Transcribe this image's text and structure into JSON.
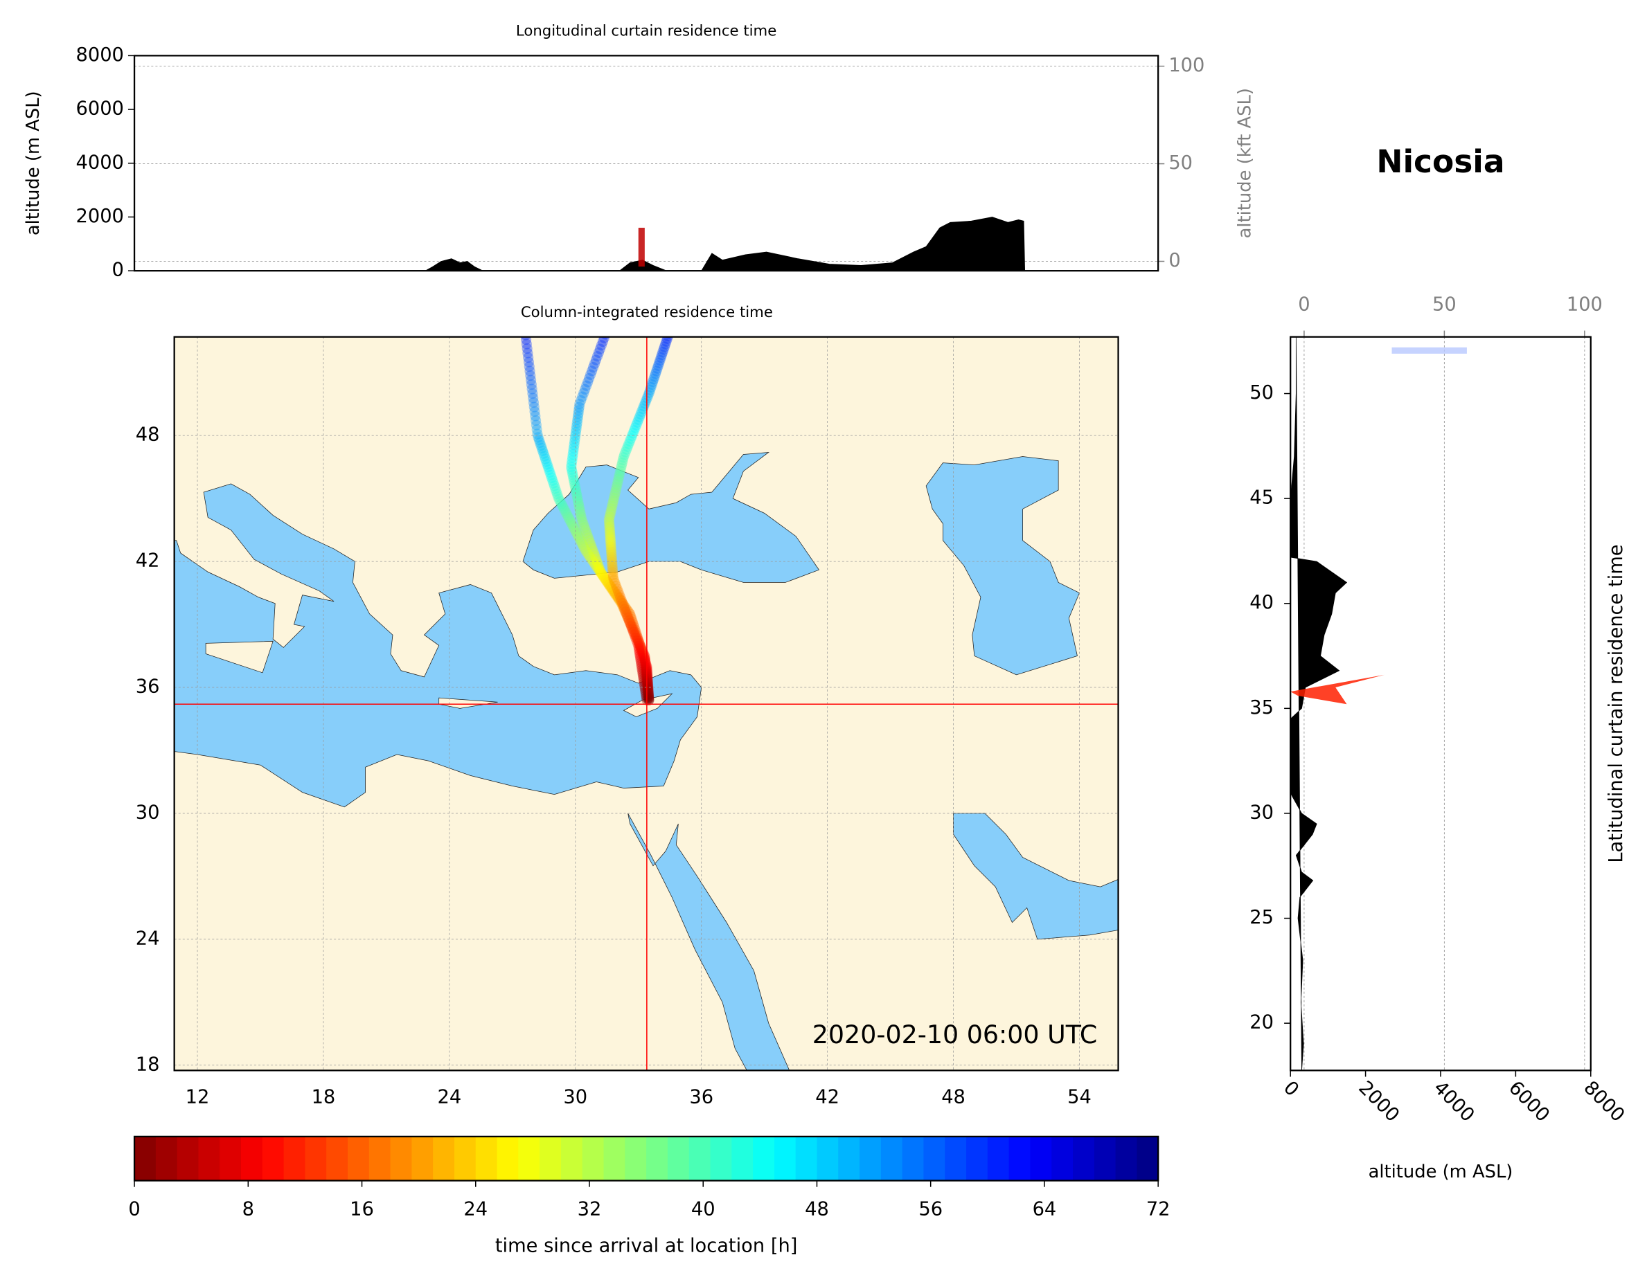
{
  "title": "Nicosia",
  "chart_data": [
    {
      "type": "area",
      "title": "Longitudinal curtain residence time",
      "y_label": "altitude (m ASL)",
      "y2_label": "altitude (kft ASL)",
      "xlim": [
        9.0,
        57.75
      ],
      "ylim": [
        0,
        8000
      ],
      "yticks": [
        0,
        2000,
        4000,
        6000,
        8000
      ],
      "y2lim": [
        -4.84,
        105.4
      ],
      "y2ticks": [
        0,
        50,
        100
      ],
      "grid": true,
      "color": "#000000",
      "x": [
        22.85,
        23.2,
        23.6,
        24.1,
        24.5,
        24.85,
        25.2,
        25.6,
        32.1,
        32.6,
        33.2,
        33.7,
        34.35,
        36.0,
        36.5,
        37.0,
        38.1,
        39.1,
        40.6,
        42.1,
        43.6,
        45.1,
        46.1,
        46.7,
        47.35,
        47.85,
        48.85,
        49.85,
        50.6,
        51.1,
        51.35,
        51.4
      ],
      "values": [
        0,
        150,
        350,
        450,
        300,
        350,
        150,
        0,
        0,
        300,
        400,
        200,
        0,
        0,
        650,
        400,
        600,
        700,
        450,
        250,
        200,
        300,
        700,
        900,
        1600,
        1800,
        1850,
        2000,
        1800,
        1900,
        1850,
        0
      ]
    },
    {
      "type": "map",
      "title": "Column-integrated residence time",
      "xlim": [
        10.9,
        55.85
      ],
      "ylim": [
        17.75,
        52.7
      ],
      "xticks": [
        12,
        18,
        24,
        30,
        36,
        42,
        48,
        54
      ],
      "yticks": [
        18,
        24,
        30,
        36,
        42,
        48
      ],
      "grid": true,
      "land_color": "#fdf5dc",
      "water_color": "#87cefa",
      "location_lon": 33.4,
      "location_lat": 35.2,
      "marker_color": "#ff0000",
      "annotation": "2020-02-10 06:00 UTC"
    },
    {
      "type": "area",
      "orientation": "horizontal",
      "title": "Latitudinal curtain residence time",
      "x_label": "altitude (m ASL)",
      "xlim": [
        0,
        8000
      ],
      "xticks": [
        0,
        2000,
        4000,
        6000,
        8000
      ],
      "x2lim": [
        -4.87,
        102.2
      ],
      "x2ticks": [
        0,
        50,
        100
      ],
      "ylim": [
        17.75,
        52.7
      ],
      "yticks": [
        20,
        25,
        30,
        35,
        40,
        45,
        50
      ],
      "grid": true,
      "color": "#000000",
      "x": [
        17.75,
        19,
        21,
        23,
        25,
        26,
        26.8,
        27.2,
        28,
        29,
        29.5,
        30,
        30.8,
        31,
        34.5,
        35,
        36,
        36.8,
        37.5,
        38.5,
        39.5,
        40.5,
        41,
        41.5,
        42,
        42.2,
        45,
        47,
        50,
        52.7
      ],
      "values": [
        300,
        350,
        280,
        330,
        200,
        250,
        600,
        300,
        150,
        590,
        700,
        300,
        50,
        0,
        0,
        300,
        400,
        1300,
        800,
        900,
        1100,
        1200,
        1500,
        1100,
        700,
        0,
        0,
        100,
        150,
        150
      ]
    },
    {
      "type": "colorbar",
      "label": "time since arrival at location [h]",
      "colormap": "jet",
      "xlim": [
        0,
        72
      ],
      "xticks": [
        0,
        8,
        16,
        24,
        32,
        40,
        48,
        56,
        64,
        72
      ]
    }
  ]
}
